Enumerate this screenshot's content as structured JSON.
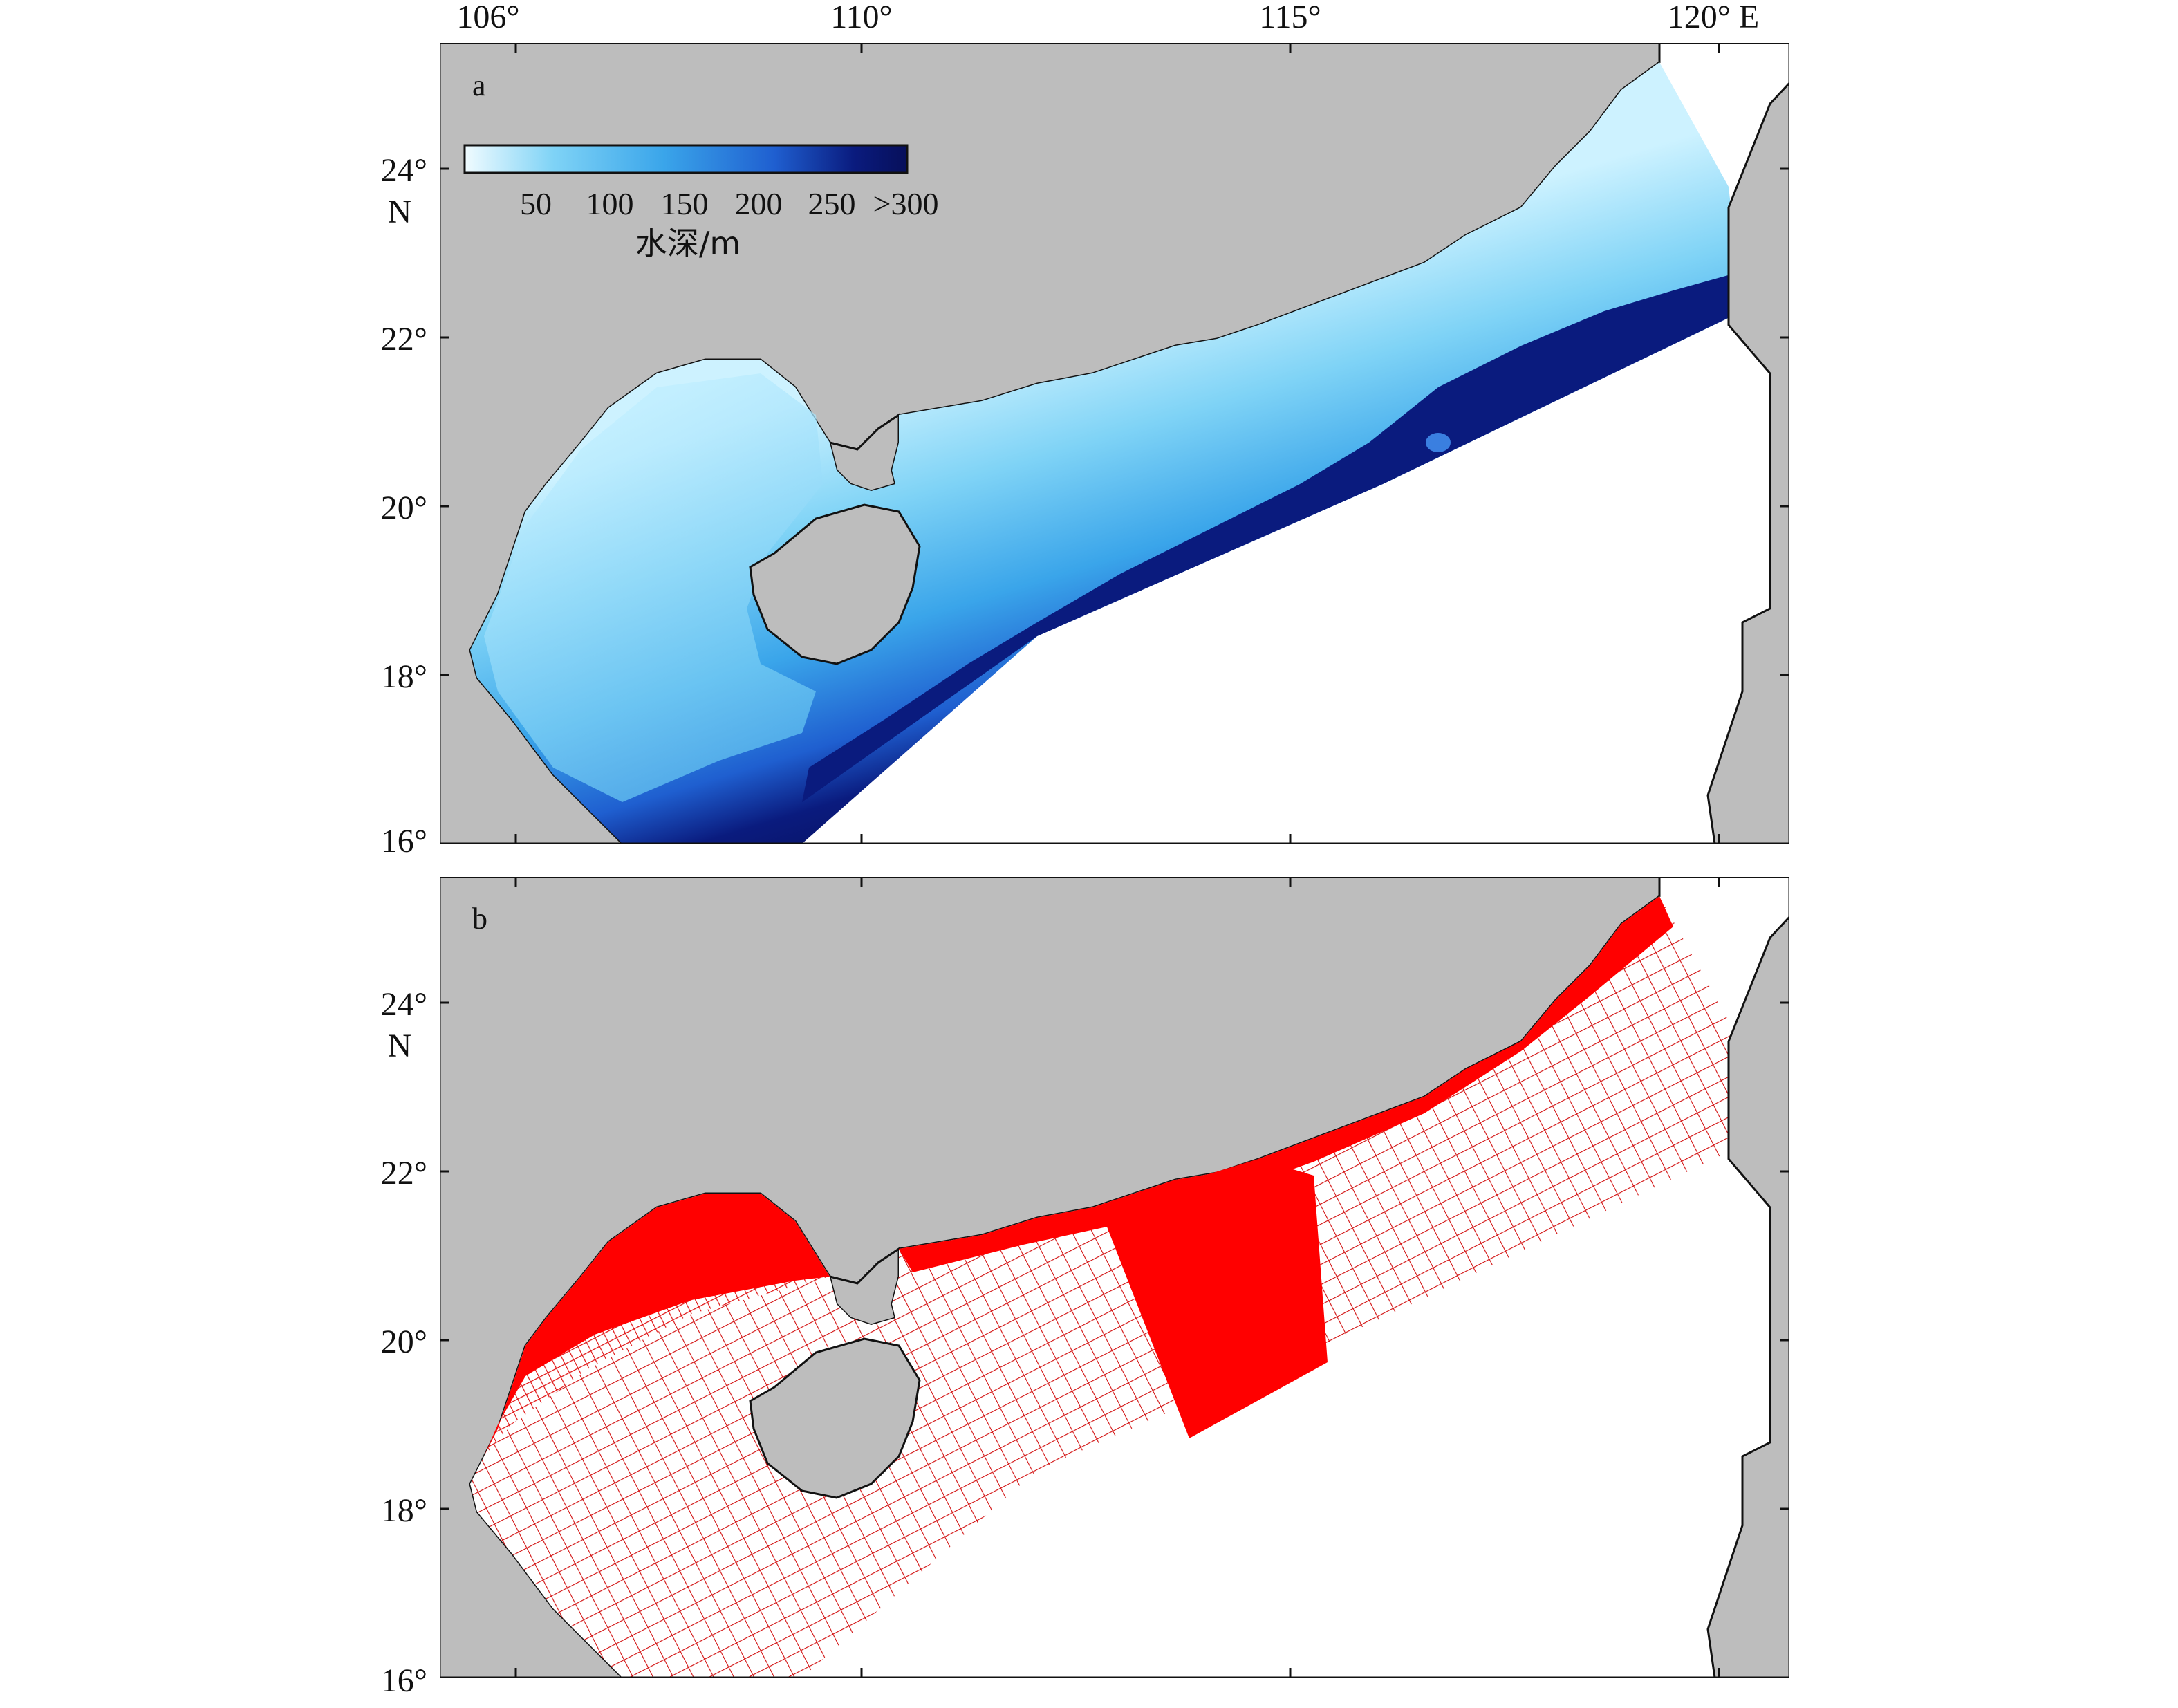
{
  "colors": {
    "land": "#bdbdbd",
    "coast": "#111111",
    "ocean_outside": "#ffffff",
    "depth_shallow": "#cdf2ff",
    "depth_mid": "#4fb8f0",
    "depth_deep": "#0a1b7e",
    "mesh_line": "#d21010",
    "mesh_dense": "#ff0000"
  },
  "axes": {
    "x_ticks": [
      "106°",
      "110°",
      "115°",
      "120° E"
    ],
    "y_ticks": [
      "16°",
      "18°",
      "20°",
      "22°",
      "24°"
    ],
    "lat_unit": "N",
    "lon_range": [
      105.5,
      121.5
    ],
    "lat_range": [
      16,
      25.5
    ]
  },
  "panel_a": {
    "label": "a",
    "colorbar": {
      "ticks": [
        "50",
        "100",
        "150",
        "200",
        "250",
        ">300"
      ],
      "title": "水深/m"
    }
  },
  "panel_b": {
    "label": "b"
  }
}
